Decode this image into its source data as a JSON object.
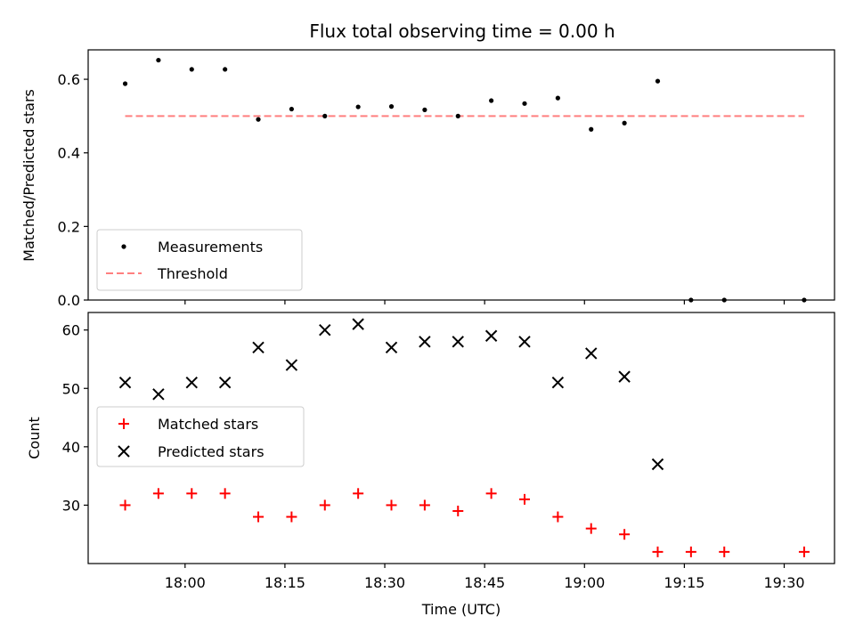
{
  "chart_data": [
    {
      "type": "scatter",
      "title": "Flux total observing time = 0.00 h",
      "xlabel": "",
      "ylabel": "Matched/Predicted stars",
      "ylim": [
        0,
        0.68
      ],
      "yticks": [
        "0.0",
        "0.2",
        "0.4",
        "0.6"
      ],
      "x": [
        "17:51",
        "17:56",
        "18:01",
        "18:06",
        "18:11",
        "18:16",
        "18:21",
        "18:26",
        "18:31",
        "18:36",
        "18:41",
        "18:46",
        "18:51",
        "18:56",
        "19:01",
        "19:06",
        "19:11",
        "19:16",
        "19:21",
        "19:33"
      ],
      "series": [
        {
          "name": "Measurements",
          "marker": "dot",
          "color": "#000000",
          "values": [
            0.588,
            0.652,
            0.627,
            0.627,
            0.491,
            0.519,
            0.5,
            0.525,
            0.526,
            0.517,
            0.5,
            0.542,
            0.534,
            0.549,
            0.464,
            0.481,
            0.595,
            0,
            0,
            0
          ]
        },
        {
          "name": "Threshold",
          "marker": "dashed-line",
          "color": "#ff7f7f",
          "values": [
            0.5,
            0.5
          ]
        }
      ],
      "threshold_x": [
        "17:51",
        "19:33"
      ],
      "legend": "lower-left"
    },
    {
      "type": "scatter",
      "title": "",
      "xlabel": "Time (UTC)",
      "ylabel": "Count",
      "ylim": [
        20,
        63
      ],
      "yticks": [
        "30",
        "40",
        "50",
        "60"
      ],
      "xticks": [
        "18:00",
        "18:15",
        "18:30",
        "18:45",
        "19:00",
        "19:15",
        "19:30"
      ],
      "x": [
        "17:51",
        "17:56",
        "18:01",
        "18:06",
        "18:11",
        "18:16",
        "18:21",
        "18:26",
        "18:31",
        "18:36",
        "18:41",
        "18:46",
        "18:51",
        "18:56",
        "19:01",
        "19:06",
        "19:11",
        "19:16",
        "19:21",
        "19:33"
      ],
      "series": [
        {
          "name": "Matched stars",
          "marker": "plus",
          "color": "#ff0000",
          "values": [
            30,
            32,
            32,
            32,
            28,
            28,
            30,
            32,
            30,
            30,
            29,
            32,
            31,
            28,
            26,
            25,
            22,
            22,
            22,
            22
          ]
        },
        {
          "name": "Predicted stars",
          "marker": "x",
          "color": "#000000",
          "values": [
            51,
            49,
            51,
            51,
            57,
            54,
            60,
            61,
            57,
            58,
            58,
            59,
            58,
            51,
            56,
            52,
            37,
            null,
            null,
            null
          ]
        }
      ],
      "legend": "center-left"
    }
  ]
}
